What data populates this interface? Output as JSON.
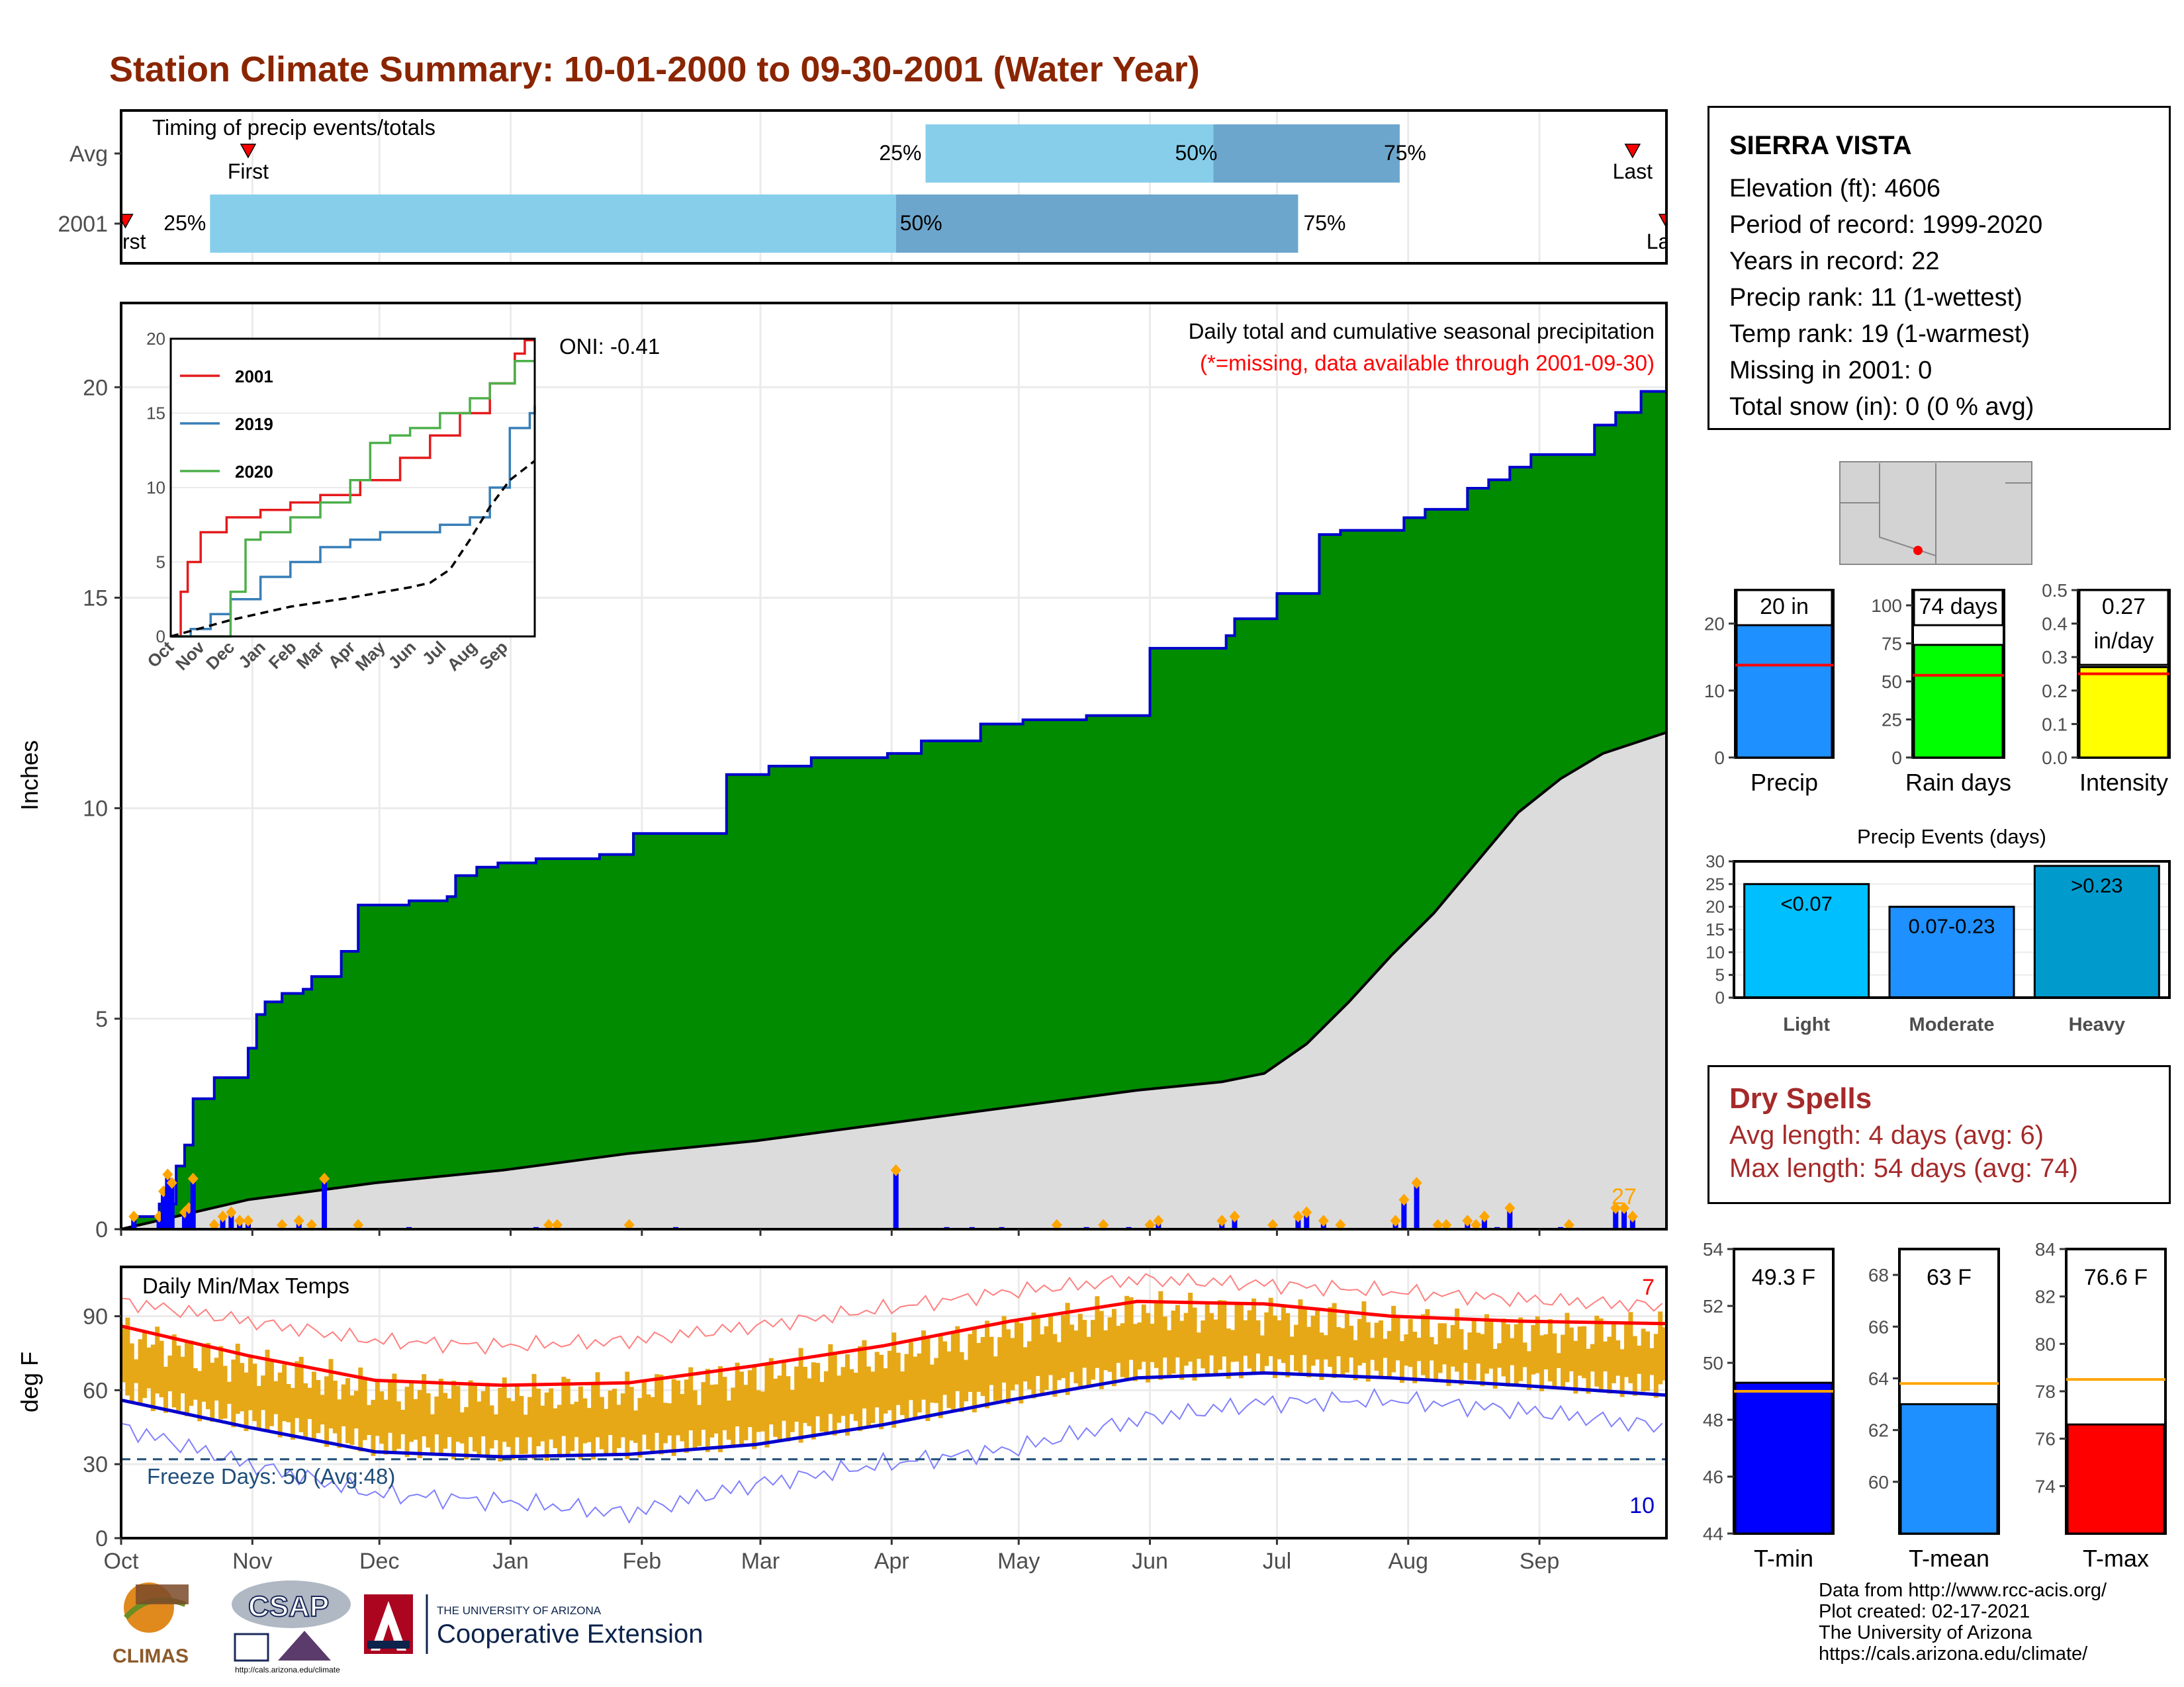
{
  "title": "Station Climate Summary: 10-01-2000 to 09-30-2001 (Water Year)",
  "timing": {
    "label": "Timing of precip events/totals",
    "rows": [
      "Avg",
      "2001"
    ],
    "avg": {
      "first_doy": 30,
      "p25_doy": 190,
      "p50_doy": 258,
      "p75_doy": 302,
      "last_doy": 357
    },
    "y2001": {
      "first_doy": 1,
      "p25_doy": 21,
      "p50_doy": 183,
      "p75_doy": 278,
      "last_doy": 365
    },
    "first_label": "First",
    "last_label": "Last",
    "p25_label": "25%",
    "p50_label": "50%",
    "p75_label": "75%",
    "colors": {
      "light": "#87ceeb",
      "dark": "#6ca6cd",
      "marker": "#ff0000"
    }
  },
  "main_chart": {
    "ylabel": "Inches",
    "ylim": [
      0,
      22
    ],
    "yticks": [
      0,
      5,
      10,
      15,
      20
    ],
    "annotation_title": "Daily total and cumulative seasonal precipitation",
    "annotation_missing": "(*=missing, data available through 2001-09-30)",
    "oni_label": "ONI: -0.41",
    "count_label": "27",
    "colors": {
      "cumulative_fill": "#008b00",
      "cumulative_line": "#0000cd",
      "avg_fill": "#dcdcdc",
      "daily_bar": "#0000ff",
      "marker": "#ffa500"
    }
  },
  "chart_data": [
    {
      "type": "area",
      "name": "cumulative precipitation 2001 (step)",
      "x_doy": [
        0,
        3,
        9,
        13,
        15,
        17,
        22,
        30,
        32,
        34,
        38,
        43,
        45,
        52,
        56,
        68,
        73,
        77,
        79,
        84,
        89,
        98,
        113,
        121,
        143,
        153,
        163,
        181,
        189,
        203,
        213,
        228,
        243,
        261,
        263,
        273,
        283,
        288,
        303,
        308,
        318,
        323,
        328,
        333,
        343,
        348,
        353,
        359,
        365
      ],
      "y": [
        0.0,
        0.3,
        0.6,
        1.5,
        2.0,
        3.1,
        3.6,
        4.3,
        5.1,
        5.4,
        5.6,
        5.7,
        6.0,
        6.6,
        7.7,
        7.8,
        7.8,
        7.9,
        8.4,
        8.6,
        8.7,
        8.8,
        8.9,
        9.4,
        10.8,
        11.0,
        11.2,
        11.3,
        11.6,
        12.0,
        12.1,
        12.2,
        13.8,
        14.1,
        14.5,
        15.1,
        16.5,
        16.6,
        16.9,
        17.1,
        17.6,
        17.8,
        18.1,
        18.4,
        18.4,
        19.1,
        19.4,
        19.9,
        19.9
      ],
      "ylim": [
        0,
        22
      ]
    },
    {
      "type": "area",
      "name": "average cumulative precipitation",
      "x_doy": [
        0,
        30,
        60,
        90,
        120,
        150,
        180,
        210,
        240,
        260,
        270,
        280,
        290,
        300,
        310,
        320,
        330,
        340,
        350,
        365
      ],
      "y": [
        0.0,
        0.7,
        1.1,
        1.4,
        1.8,
        2.1,
        2.5,
        2.9,
        3.3,
        3.5,
        3.7,
        4.4,
        5.4,
        6.5,
        7.5,
        8.7,
        9.9,
        10.7,
        11.3,
        11.8
      ]
    },
    {
      "type": "bar",
      "name": "daily precipitation 2001",
      "x_doy": [
        3,
        9,
        10,
        11,
        12,
        15,
        16,
        17,
        22,
        24,
        26,
        28,
        30,
        38,
        42,
        45,
        48,
        56,
        68,
        98,
        101,
        103,
        120,
        131,
        183,
        195,
        201,
        208,
        221,
        228,
        232,
        238,
        243,
        245,
        260,
        263,
        272,
        278,
        280,
        284,
        288,
        301,
        303,
        306,
        311,
        313,
        318,
        320,
        322,
        325,
        328,
        340,
        342,
        353,
        355,
        357
      ],
      "values": [
        0.3,
        0.3,
        0.9,
        1.3,
        1.1,
        0.4,
        0.5,
        1.2,
        0.1,
        0.3,
        0.4,
        0.2,
        0.2,
        0.1,
        0.2,
        0.1,
        1.2,
        0.1,
        0.05,
        0.05,
        0.1,
        0.1,
        0.1,
        0.05,
        1.4,
        0.05,
        0.05,
        0.05,
        0.1,
        0.05,
        0.1,
        0.05,
        0.1,
        0.2,
        0.2,
        0.3,
        0.1,
        0.3,
        0.4,
        0.2,
        0.1,
        0.2,
        0.7,
        1.1,
        0.1,
        0.1,
        0.2,
        0.1,
        0.3,
        0.05,
        0.5,
        0.05,
        0.1,
        0.5,
        0.5,
        0.3
      ]
    },
    {
      "type": "line",
      "name": "inset cumulative precip by year",
      "ylim": [
        0,
        20
      ],
      "yticks": [
        0,
        5,
        10,
        15,
        20
      ],
      "x_labels": [
        "Oct",
        "Nov",
        "Dec",
        "Jan",
        "Feb",
        "Mar",
        "Apr",
        "May",
        "Jun",
        "Jul",
        "Aug",
        "Sep"
      ],
      "series": [
        {
          "name": "2001",
          "color": "#e41a1c",
          "x_doy": [
            0,
            10,
            17,
            30,
            56,
            90,
            120,
            150,
            190,
            230,
            260,
            290,
            320,
            345,
            355,
            365
          ],
          "y": [
            0,
            3.0,
            5.0,
            7.0,
            8.0,
            8.5,
            9.0,
            9.5,
            10.5,
            12.0,
            13.5,
            15.0,
            17.0,
            19.0,
            19.9,
            19.9
          ]
        },
        {
          "name": "2019",
          "color": "#377eb8",
          "x_doy": [
            0,
            20,
            40,
            60,
            90,
            120,
            150,
            180,
            210,
            240,
            270,
            300,
            320,
            340,
            360,
            365
          ],
          "y": [
            0,
            0.5,
            1.5,
            2.5,
            4.0,
            5.0,
            6.0,
            6.5,
            7.0,
            7.0,
            7.5,
            8.0,
            10.0,
            14.0,
            15.0,
            15.5
          ]
        },
        {
          "name": "2020",
          "color": "#4daf4a",
          "x_doy": [
            0,
            45,
            60,
            75,
            90,
            120,
            150,
            180,
            200,
            220,
            240,
            270,
            300,
            320,
            345,
            365
          ],
          "y": [
            0,
            0.0,
            3.0,
            6.5,
            7.0,
            8.0,
            9.0,
            10.5,
            13.0,
            13.5,
            14.0,
            15.0,
            16.0,
            17.0,
            18.5,
            18.5
          ]
        },
        {
          "name": "avg",
          "color": "#000000",
          "x_doy": [
            0,
            60,
            120,
            180,
            240,
            260,
            280,
            300,
            320,
            340,
            365
          ],
          "y": [
            0,
            1.1,
            2.0,
            2.6,
            3.3,
            3.6,
            4.5,
            6.5,
            8.7,
            10.5,
            11.8
          ]
        }
      ]
    },
    {
      "type": "bar",
      "name": "summary precip total / rain days / intensity",
      "panels": [
        {
          "label": "Precip",
          "value": 20,
          "avg": 13.8,
          "value_label": "20 in",
          "ylim": [
            0,
            25
          ],
          "yticks": [
            0,
            10,
            20
          ],
          "color": "#1e90ff"
        },
        {
          "label": "Rain days",
          "value": 74,
          "avg": 54,
          "value_label": "74 days",
          "ylim": [
            0,
            110
          ],
          "yticks": [
            0,
            25,
            50,
            75,
            100
          ],
          "color": "#00ff00"
        },
        {
          "label": "Intensity",
          "value": 0.27,
          "avg": 0.25,
          "value_label": "0.27\nin/day",
          "ylim": [
            0,
            0.5
          ],
          "yticks": [
            0.0,
            0.1,
            0.2,
            0.3,
            0.4,
            0.5
          ],
          "color": "#ffff00"
        }
      ]
    },
    {
      "type": "bar",
      "name": "Precip Events (days)",
      "title": "Precip Events (days)",
      "categories": [
        "Light",
        "Moderate",
        "Heavy"
      ],
      "values": [
        25,
        20,
        29
      ],
      "bar_labels": [
        "<0.07",
        "0.07-0.23",
        ">0.23"
      ],
      "colors": [
        "#00bfff",
        "#1e90ff",
        "#009acd"
      ],
      "ylim": [
        0,
        30
      ],
      "yticks": [
        0,
        5,
        10,
        15,
        20,
        25,
        30
      ]
    },
    {
      "type": "line",
      "name": "Daily Min/Max Temps",
      "ylabel": "deg F",
      "ylim": [
        0,
        110
      ],
      "yticks": [
        0,
        30,
        60,
        90
      ],
      "x_labels": [
        "Oct",
        "Nov",
        "Dec",
        "Jan",
        "Feb",
        "Mar",
        "Apr",
        "May",
        "Jun",
        "Jul",
        "Aug",
        "Sep"
      ],
      "x_label_doy": [
        0,
        31,
        61,
        92,
        123,
        151,
        182,
        212,
        243,
        273,
        304,
        335
      ],
      "avg_max": {
        "x_doy": [
          0,
          30,
          60,
          90,
          120,
          150,
          180,
          210,
          240,
          270,
          300,
          330,
          365
        ],
        "y": [
          86,
          74,
          64,
          62,
          63,
          70,
          78,
          88,
          96,
          95,
          90,
          88,
          87
        ]
      },
      "avg_min": {
        "x_doy": [
          0,
          30,
          60,
          90,
          120,
          150,
          180,
          210,
          240,
          270,
          300,
          330,
          365
        ],
        "y": [
          56,
          45,
          35,
          33,
          34,
          38,
          46,
          56,
          65,
          67,
          65,
          62,
          58
        ]
      },
      "record_max": {
        "x_doy": [
          0,
          30,
          60,
          90,
          120,
          150,
          180,
          210,
          240,
          270,
          300,
          330,
          365
        ],
        "y": [
          96,
          88,
          80,
          78,
          80,
          86,
          93,
          100,
          105,
          103,
          100,
          97,
          94
        ]
      },
      "record_min": {
        "x_doy": [
          0,
          30,
          60,
          90,
          120,
          150,
          180,
          210,
          240,
          270,
          300,
          330,
          365
        ],
        "y": [
          45,
          30,
          18,
          15,
          10,
          22,
          30,
          36,
          48,
          55,
          56,
          52,
          45
        ]
      },
      "freeze_line": 32,
      "freeze_label": "Freeze Days: 50 (Avg:48)",
      "panel_label": "Daily Min/Max Temps",
      "record_high_count": "7",
      "record_low_count": "10",
      "colors": {
        "range": "#e6a817",
        "avg_max": "#ff0000",
        "avg_min": "#0000cd",
        "rec_max": "#ff8080",
        "rec_min": "#8080ff",
        "freeze": "#1f4e79"
      }
    },
    {
      "type": "bar",
      "name": "temperature summaries",
      "panels": [
        {
          "label": "T-min",
          "value": 49.3,
          "avg": 49.0,
          "value_label": "49.3 F",
          "ylim": [
            44,
            54
          ],
          "yticks": [
            44,
            46,
            48,
            50,
            52,
            54
          ],
          "color": "#0000ff"
        },
        {
          "label": "T-mean",
          "value": 63,
          "avg": 63.8,
          "value_label": "63 F",
          "ylim": [
            58,
            69
          ],
          "yticks": [
            60,
            62,
            64,
            66,
            68
          ],
          "color": "#1e90ff"
        },
        {
          "label": "T-max",
          "value": 76.6,
          "avg": 78.5,
          "value_label": "76.6 F",
          "ylim": [
            72,
            84
          ],
          "yticks": [
            74,
            76,
            78,
            80,
            82,
            84
          ],
          "color": "#ff0000"
        }
      ]
    }
  ],
  "months": [
    "Oct",
    "Nov",
    "Dec",
    "Jan",
    "Feb",
    "Mar",
    "Apr",
    "May",
    "Jun",
    "Jul",
    "Aug",
    "Sep"
  ],
  "station": {
    "name": "SIERRA VISTA",
    "elevation": "Elevation (ft): 4606",
    "period": "Period of record: 1999-2020",
    "years": "Years in record: 22",
    "precip_rank": "Precip rank: 11 (1-wettest)",
    "temp_rank": "Temp rank: 19 (1-warmest)",
    "missing": "Missing in 2001: 0",
    "snow": "Total snow (in): 0 (0 % avg)"
  },
  "dry_spells": {
    "title": "Dry Spells",
    "avg": "Avg length: 4 days (avg: 6)",
    "max": "Max length: 54 days (avg: 74)"
  },
  "footer": {
    "line1": "Data from http://www.rcc-acis.org/",
    "line2": "Plot created: 02-17-2021",
    "line3": "The University of Arizona",
    "line4": "https://cals.arizona.edu/climate/"
  },
  "logos": {
    "climas": "CLIMAS",
    "csap": "CSAP",
    "csap_url": "http://cals.arizona.edu/climate",
    "ua_small": "THE UNIVERSITY OF ARIZONA",
    "coop": "Cooperative Extension"
  }
}
